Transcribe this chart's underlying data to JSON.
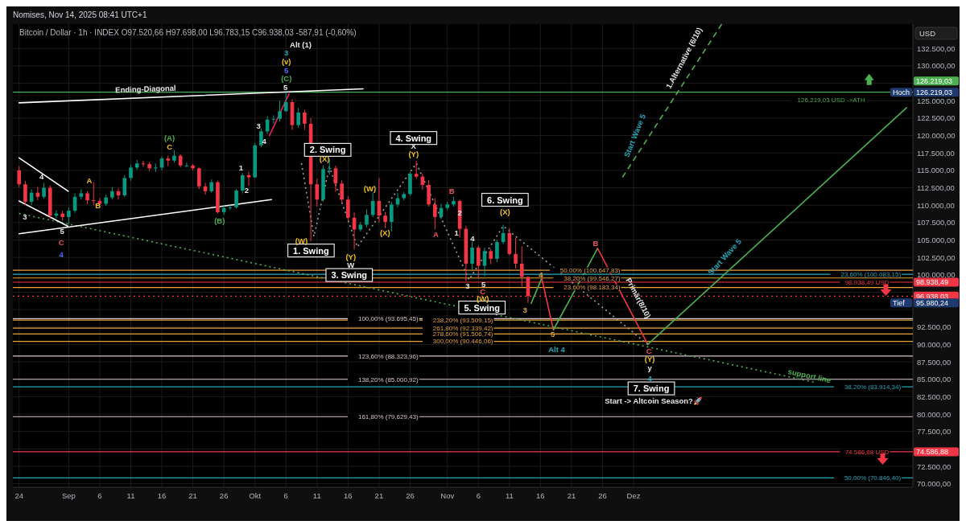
{
  "chart_data": {
    "type": "candlestick",
    "title": "Nomises, Nov 14, 2025 08:41 UTC+1",
    "subtitle": "Bitcoin / Dollar · 1h · INDEX  O97.520,66 H97.698,00 L96.783,15 C96.938,03 -587,91 (-0,60%)",
    "x": [
      "2025-08-24",
      "2025-08-25",
      "2025-08-26",
      "2025-08-27",
      "2025-08-28",
      "2025-08-29",
      "2025-08-30",
      "2025-08-31",
      "2025-09-01",
      "2025-09-02",
      "2025-09-03",
      "2025-09-04",
      "2025-09-05",
      "2025-09-06",
      "2025-09-07",
      "2025-09-08",
      "2025-09-09",
      "2025-09-10",
      "2025-09-11",
      "2025-09-12",
      "2025-09-13",
      "2025-09-14",
      "2025-09-15",
      "2025-09-16",
      "2025-09-17",
      "2025-09-18",
      "2025-09-19",
      "2025-09-20",
      "2025-09-21",
      "2025-09-22",
      "2025-09-23",
      "2025-09-24",
      "2025-09-25",
      "2025-09-26",
      "2025-09-27",
      "2025-09-28",
      "2025-09-29",
      "2025-09-30",
      "2025-10-01",
      "2025-10-02",
      "2025-10-03",
      "2025-10-04",
      "2025-10-05",
      "2025-10-06",
      "2025-10-07",
      "2025-10-08",
      "2025-10-09",
      "2025-10-10",
      "2025-10-11",
      "2025-10-12",
      "2025-10-13",
      "2025-10-14",
      "2025-10-15",
      "2025-10-16",
      "2025-10-17",
      "2025-10-18",
      "2025-10-19",
      "2025-10-20",
      "2025-10-21",
      "2025-10-22",
      "2025-10-23",
      "2025-10-24",
      "2025-10-25",
      "2025-10-26",
      "2025-10-27",
      "2025-10-28",
      "2025-10-29",
      "2025-10-30",
      "2025-10-31",
      "2025-11-01",
      "2025-11-02",
      "2025-11-03",
      "2025-11-04",
      "2025-11-05",
      "2025-11-06",
      "2025-11-07",
      "2025-11-08",
      "2025-11-09",
      "2025-11-10",
      "2025-11-11",
      "2025-11-12",
      "2025-11-13",
      "2025-11-14"
    ],
    "ohlc": [
      [
        115000,
        115600,
        112600,
        113000
      ],
      [
        113000,
        113500,
        110000,
        110500
      ],
      [
        110500,
        112300,
        110000,
        111800
      ],
      [
        111800,
        112600,
        110700,
        111200
      ],
      [
        111200,
        113200,
        110900,
        112500
      ],
      [
        112500,
        112800,
        108000,
        108500
      ],
      [
        108500,
        109300,
        108100,
        108800
      ],
      [
        108800,
        109200,
        107800,
        108300
      ],
      [
        108300,
        109700,
        107300,
        109200
      ],
      [
        109200,
        111700,
        108900,
        111200
      ],
      [
        111200,
        112300,
        110800,
        111700
      ],
      [
        111700,
        112000,
        110200,
        110700
      ],
      [
        110700,
        113300,
        110000,
        110600
      ],
      [
        110600,
        111000,
        109900,
        110200
      ],
      [
        110200,
        111500,
        109900,
        111100
      ],
      [
        111100,
        112600,
        110800,
        112000
      ],
      [
        112000,
        112400,
        110800,
        111400
      ],
      [
        111400,
        114300,
        111200,
        113900
      ],
      [
        113900,
        115800,
        113500,
        115400
      ],
      [
        115400,
        116500,
        115100,
        116000
      ],
      [
        116000,
        116400,
        115500,
        115900
      ],
      [
        115900,
        116200,
        114900,
        115300
      ],
      [
        115300,
        116000,
        114800,
        115400
      ],
      [
        115400,
        117000,
        115000,
        116700
      ],
      [
        116700,
        117100,
        115600,
        116400
      ],
      [
        116400,
        117900,
        116100,
        117100
      ],
      [
        117100,
        117300,
        115400,
        115700
      ],
      [
        115700,
        116100,
        115400,
        115700
      ],
      [
        115700,
        115900,
        115000,
        115300
      ],
      [
        115300,
        115400,
        112300,
        112700
      ],
      [
        112700,
        113200,
        111500,
        112000
      ],
      [
        112000,
        113700,
        111800,
        113300
      ],
      [
        113300,
        113500,
        108800,
        109000
      ],
      [
        109000,
        110000,
        108600,
        109600
      ],
      [
        109600,
        110000,
        109300,
        109700
      ],
      [
        109700,
        112300,
        109500,
        112100
      ],
      [
        112100,
        114600,
        111700,
        114300
      ],
      [
        114300,
        114800,
        112800,
        114000
      ],
      [
        114000,
        118900,
        113900,
        118600
      ],
      [
        118600,
        121000,
        118300,
        120600
      ],
      [
        120600,
        122800,
        120200,
        122300
      ],
      [
        122300,
        122900,
        121700,
        122400
      ],
      [
        122400,
        125000,
        122000,
        123500
      ],
      [
        123500,
        126219.03,
        123400,
        124800
      ],
      [
        124800,
        125200,
        120800,
        121500
      ],
      [
        121500,
        124000,
        121100,
        123300
      ],
      [
        123300,
        123700,
        120800,
        121700
      ],
      [
        121700,
        122500,
        104800,
        113000
      ],
      [
        113000,
        113800,
        109800,
        110800
      ],
      [
        110800,
        115700,
        110500,
        115200
      ],
      [
        115200,
        116600,
        114400,
        115300
      ],
      [
        115300,
        115700,
        111900,
        113100
      ],
      [
        113100,
        113600,
        110300,
        110800
      ],
      [
        110800,
        111300,
        107800,
        108200
      ],
      [
        108200,
        109000,
        103600,
        106500
      ],
      [
        106500,
        107600,
        106200,
        107200
      ],
      [
        107200,
        109400,
        106800,
        108600
      ],
      [
        108600,
        111800,
        108300,
        110600
      ],
      [
        110600,
        113900,
        107500,
        108500
      ],
      [
        108500,
        109000,
        106700,
        107600
      ],
      [
        107600,
        110500,
        106200,
        110100
      ],
      [
        110100,
        111800,
        109700,
        111000
      ],
      [
        111000,
        111900,
        110700,
        111600
      ],
      [
        111600,
        114800,
        111400,
        114500
      ],
      [
        114500,
        116400,
        113800,
        114100
      ],
      [
        114100,
        114500,
        112200,
        112900
      ],
      [
        112900,
        113600,
        109800,
        110100
      ],
      [
        110100,
        111000,
        106500,
        108300
      ],
      [
        108300,
        110200,
        108000,
        109600
      ],
      [
        109600,
        110500,
        109300,
        110100
      ],
      [
        110100,
        111200,
        109800,
        110600
      ],
      [
        110600,
        110800,
        105400,
        106600
      ],
      [
        106600,
        107000,
        99100,
        101600
      ],
      [
        101600,
        104800,
        100700,
        103900
      ],
      [
        103900,
        104200,
        99400,
        101300
      ],
      [
        101300,
        103900,
        99800,
        103400
      ],
      [
        103400,
        103700,
        101500,
        102300
      ],
      [
        102300,
        105000,
        101800,
        104700
      ],
      [
        104700,
        107200,
        104400,
        106000
      ],
      [
        106000,
        106700,
        102800,
        103000
      ],
      [
        103000,
        105300,
        100900,
        101600
      ],
      [
        101600,
        104100,
        98300,
        99700
      ],
      [
        99700,
        99800,
        95980.24,
        96938.03
      ]
    ],
    "series": [
      {
        "type": "line",
        "color": "#4caf50",
        "line_style": "solid",
        "x": [
          "2025-11-14T12:00",
          "2025-11-16T05:00"
        ],
        "values": [
          95900,
          99500
        ]
      },
      {
        "type": "line",
        "color": "#f23645",
        "line_style": "solid",
        "x": [
          "2025-11-16T05:00",
          "2025-11-18T02:00"
        ],
        "values": [
          99500,
          92100
        ]
      },
      {
        "type": "line",
        "color": "#4caf50",
        "line_style": "solid",
        "x": [
          "2025-11-18T02:00",
          "2025-11-25T05:00"
        ],
        "values": [
          92100,
          103800
        ]
      },
      {
        "type": "line",
        "color": "#f23645",
        "line_style": "solid",
        "x": [
          "2025-11-25T05:00",
          "2025-12-03T07:00"
        ],
        "values": [
          103800,
          90000
        ]
      },
      {
        "type": "line",
        "color": "#4caf50",
        "line_style": "solid",
        "x": [
          "2025-12-03T07:00",
          "2026-01-14"
        ],
        "values": [
          90000,
          124000
        ]
      },
      {
        "type": "line",
        "color": "#4caf50",
        "line_style": "dashed",
        "x": [
          "2025-11-29T05:00",
          "2025-12-15T05:00"
        ],
        "values": [
          114000,
          136000
        ]
      },
      {
        "type": "line",
        "color": "#9e9e9e",
        "line_style": "dotted",
        "x": [
          "2025-10-08T12:00",
          "2025-10-10T12:00",
          "2025-10-13",
          "2025-10-17T12:00",
          "2025-10-27",
          "2025-11-04T12:00",
          "2025-11-10",
          "2025-12-03T07:00"
        ],
        "values": [
          116000,
          105500,
          115500,
          104000,
          116000,
          99300,
          107000,
          90000
        ]
      },
      {
        "type": "line",
        "color": "#4caf50",
        "line_style": "dotted",
        "x": [
          "2025-08-24",
          "2025-12-30"
        ],
        "values": [
          108800,
          84600
        ]
      },
      {
        "type": "line",
        "color": "#ffffff",
        "line_style": "solid",
        "x": [
          "2025-08-24",
          "2025-10-18T10:00"
        ],
        "values": [
          124700,
          126700
        ]
      },
      {
        "type": "line",
        "color": "#ffffff",
        "line_style": "solid",
        "x": [
          "2025-08-24",
          "2025-10-03T16:00"
        ],
        "values": [
          105900,
          110800
        ]
      },
      {
        "type": "line",
        "color": "#ffffff",
        "line_style": "solid",
        "x": [
          "2025-08-24",
          "2025-08-31T22:00"
        ],
        "values": [
          116800,
          112000
        ]
      },
      {
        "type": "line",
        "color": "#ffffff",
        "line_style": "solid",
        "x": [
          "2025-08-24",
          "2025-08-31T20:00"
        ],
        "values": [
          110600,
          107000
        ]
      },
      {
        "type": "line",
        "color": "#e91e63",
        "line_style": "solid",
        "x": [
          "2025-10-03T08:00",
          "2025-10-06T12:00"
        ],
        "values": [
          120000,
          126000
        ]
      }
    ],
    "xlim": [
      "2025-08-23",
      "2026-01-15"
    ],
    "xticks": [
      {
        "value": "2025-08-24",
        "label": "24"
      },
      {
        "value": "2025-09-01",
        "label": "Sep"
      },
      {
        "value": "2025-09-06",
        "label": "6"
      },
      {
        "value": "2025-09-11",
        "label": "11"
      },
      {
        "value": "2025-09-16",
        "label": "16"
      },
      {
        "value": "2025-09-21",
        "label": "21"
      },
      {
        "value": "2025-09-26",
        "label": "26"
      },
      {
        "value": "2025-10-01",
        "label": "Okt"
      },
      {
        "value": "2025-10-06",
        "label": "6"
      },
      {
        "value": "2025-10-11",
        "label": "11"
      },
      {
        "value": "2025-10-16",
        "label": "16"
      },
      {
        "value": "2025-10-21",
        "label": "21"
      },
      {
        "value": "2025-10-26",
        "label": "26"
      },
      {
        "value": "2025-11-01",
        "label": "Nov"
      },
      {
        "value": "2025-11-06",
        "label": "6"
      },
      {
        "value": "2025-11-11",
        "label": "11"
      },
      {
        "value": "2025-11-16",
        "label": "16"
      },
      {
        "value": "2025-11-21",
        "label": "21"
      },
      {
        "value": "2025-11-26",
        "label": "26"
      },
      {
        "value": "2025-12-01",
        "label": "Dez"
      }
    ],
    "ylim": [
      69500,
      136000
    ],
    "yticks": [
      {
        "value": 70000,
        "label": "70.000,00"
      },
      {
        "value": 72500,
        "label": "72.500,00"
      },
      {
        "value": 75000,
        "label": null
      },
      {
        "value": 77500,
        "label": "77.500,00"
      },
      {
        "value": 80000,
        "label": "80.000,00"
      },
      {
        "value": 82500,
        "label": "82.500,00"
      },
      {
        "value": 85000,
        "label": "85.000,00"
      },
      {
        "value": 87500,
        "label": "87.500,00"
      },
      {
        "value": 90000,
        "label": "90.000,00"
      },
      {
        "value": 92500,
        "label": "92.500,00"
      },
      {
        "value": 95000,
        "label": null
      },
      {
        "value": 97500,
        "label": null
      },
      {
        "value": 100000,
        "label": "100.000,00"
      },
      {
        "value": 102500,
        "label": "102.500,00"
      },
      {
        "value": 105000,
        "label": "105.000,00"
      },
      {
        "value": 107500,
        "label": "107.500,00"
      },
      {
        "value": 110000,
        "label": "110.000,00"
      },
      {
        "value": 112500,
        "label": "112.500,00"
      },
      {
        "value": 115000,
        "label": "115.000,00"
      },
      {
        "value": 117500,
        "label": "117.500,00"
      },
      {
        "value": 120000,
        "label": "120.000,00"
      },
      {
        "value": 122500,
        "label": "122.500,00"
      },
      {
        "value": 125000,
        "label": "125.000,00"
      },
      {
        "value": 127500,
        "label": null
      },
      {
        "value": 130000,
        "label": "130.000,00"
      },
      {
        "value": 132500,
        "label": "132.500,00"
      }
    ],
    "grid": true,
    "ref_lines": [
      {
        "axis": "y",
        "value": 93695.45,
        "label": "100,00% (93.695,45)",
        "color": "#d8c4cc"
      },
      {
        "axis": "y",
        "value": 93509.15,
        "label": "238,20% (93.509,15)",
        "color": "#e8a33a"
      },
      {
        "axis": "y",
        "value": 88323.96,
        "label": "123,60% (88.323,96)",
        "color": "#d8c4cc"
      },
      {
        "axis": "y",
        "value": 126219.03,
        "label": "126.219,03 USD ->ATH",
        "color": "#4caf50"
      },
      {
        "axis": "y",
        "value": 85000.92,
        "label": "138,20% (85.000,92)",
        "color": "#d8c4cc"
      },
      {
        "axis": "y",
        "value": 92339.42,
        "label": "261,80% (92.339,42)",
        "color": "#e8a33a"
      },
      {
        "axis": "y",
        "value": 98183.34,
        "label": "23,60% (98.183,34)",
        "color": "#e8a33a"
      },
      {
        "axis": "y",
        "value": 98938.49,
        "label": "98.938,49 USD",
        "color": "#f23645"
      },
      {
        "axis": "y",
        "value": 79629.43,
        "label": "161,80% (79.629,43)",
        "color": "#d8c4cc"
      },
      {
        "axis": "y",
        "value": 100647.83,
        "label": "50,00% (100.647,83)",
        "color": "#e8a33a"
      },
      {
        "axis": "y",
        "value": 91506.74,
        "label": "278,60% (91.506,74)",
        "color": "#e8a33a"
      },
      {
        "axis": "y",
        "value": 100083.15,
        "label": "23,60% (100.083,15)",
        "color": "#26a5b8"
      },
      {
        "axis": "y",
        "value": 90446.06,
        "label": "300,00% (90.446,06)",
        "color": "#e8a33a"
      },
      {
        "axis": "y",
        "value": 99546.27,
        "label": "38,20% (99.546,27)",
        "color": "#e8a33a"
      },
      {
        "axis": "y",
        "value": 83914.34,
        "label": "38,20% (83.914,34)",
        "color": "#26a5b8"
      },
      {
        "axis": "y",
        "value": 74586.88,
        "label": "74.586,88 USD",
        "color": "#f23645"
      },
      {
        "axis": "y",
        "value": 70846.4,
        "label": "50,00% (70.846,40)",
        "color": "#26a5b8"
      },
      {
        "axis": "y",
        "value": 96938.03,
        "color": "#f23645",
        "line_style": "dotted"
      }
    ],
    "annotations": [
      "USD",
      "126.219,03",
      "Hoch",
      "126.219,03",
      "98.938,49",
      "96.938,03",
      "Tief",
      "95.980,24",
      "74.586,88",
      "Ending-Diagonal",
      "Alt (1)",
      "3",
      "(v)",
      "5",
      "(C)",
      "5",
      "1. Swing",
      "2. Swing",
      "3. Swing",
      "4. Swing",
      "5. Swing",
      "6. Swing",
      "7. Swing",
      "Start -> Altcoin Season?🚀",
      "support line",
      "Start Wave 5",
      "Start Wave 5",
      "1.Alternative (6/10)",
      "Primär(8/10)",
      "Alt 4",
      "(A)",
      "C",
      "(B)",
      "A",
      "B",
      "3",
      "4",
      "5",
      "C",
      "4",
      "1",
      "2",
      "3",
      "4",
      "(W)",
      "(X)",
      "(Y)",
      "W",
      "(W)",
      "(X)",
      "X",
      "(Y)",
      "B",
      "A",
      "1",
      "2",
      "4",
      "3",
      "5",
      "C",
      "(W)",
      "(X)",
      "3",
      "4",
      "5",
      "B",
      "C",
      "(Y)",
      "y",
      "4"
    ]
  }
}
